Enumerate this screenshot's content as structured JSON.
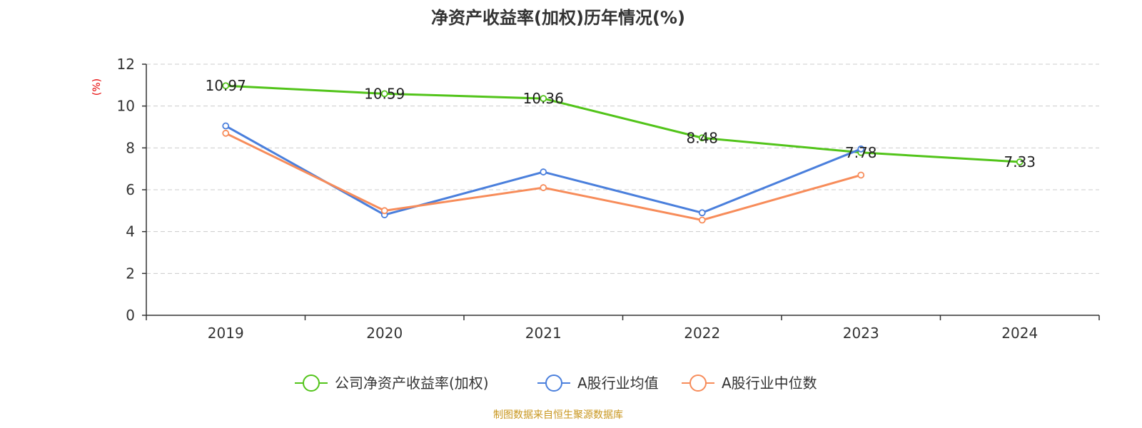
{
  "chart_data": {
    "type": "line",
    "title": "净资产收益率(加权)历年情况(%)",
    "ylabel": "(%)",
    "xlabel": "",
    "categories": [
      "2019",
      "2020",
      "2021",
      "2022",
      "2023",
      "2024"
    ],
    "ylim": [
      0,
      12
    ],
    "yticks": [
      0,
      2,
      4,
      6,
      8,
      10,
      12
    ],
    "grid": true,
    "legend_position": "bottom",
    "series": [
      {
        "name": "公司净资产收益率(加权)",
        "color": "#52c41a",
        "values": [
          10.97,
          10.59,
          10.36,
          8.48,
          7.78,
          7.33
        ],
        "labels": [
          "10.97",
          "10.59",
          "10.36",
          "8.48",
          "7.78",
          "7.33"
        ]
      },
      {
        "name": "A股行业均值",
        "color": "#4a7fdc",
        "values": [
          9.05,
          4.8,
          6.85,
          4.9,
          7.95,
          null
        ]
      },
      {
        "name": "A股行业中位数",
        "color": "#f78c5a",
        "values": [
          8.7,
          5.0,
          6.1,
          4.55,
          6.7,
          null
        ]
      }
    ],
    "source": "制图数据来自恒生聚源数据库"
  }
}
